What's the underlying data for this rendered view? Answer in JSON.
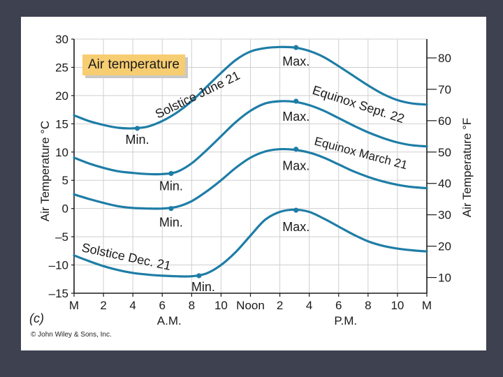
{
  "chart_data": {
    "type": "line",
    "title": "Air temperature",
    "ylabel_left": "Air Temperature °C",
    "ylabel_right": "Air Temperature °F",
    "ylim": [
      -15,
      30
    ],
    "yticks_left": [
      "30",
      "25",
      "20",
      "15",
      "10",
      "5",
      "0",
      "–5",
      "–10",
      "–15"
    ],
    "yticks_left_values": [
      30,
      25,
      20,
      15,
      10,
      5,
      0,
      -5,
      -10,
      -15
    ],
    "yticks_right": [
      "80",
      "70",
      "60",
      "50",
      "40",
      "30",
      "20",
      "10"
    ],
    "yticks_right_values_f": [
      80,
      70,
      60,
      50,
      40,
      30,
      20,
      10
    ],
    "xticks": [
      "M",
      "2",
      "4",
      "6",
      "8",
      "10",
      "Noon",
      "2",
      "4",
      "6",
      "8",
      "10",
      "M"
    ],
    "xticks_hours": [
      0,
      2,
      4,
      6,
      8,
      10,
      12,
      14,
      16,
      18,
      20,
      22,
      24
    ],
    "x_period_labels": [
      "A.M.",
      "P.M."
    ],
    "x_period_hours": [
      6,
      18
    ],
    "grid": true,
    "series": [
      {
        "name": "Solstice June 21",
        "x": [
          0,
          1,
          2,
          3,
          4,
          5,
          6,
          7,
          8,
          9,
          10,
          11,
          12,
          13,
          14,
          15,
          16,
          17,
          18,
          19,
          20,
          21,
          22,
          23,
          24
        ],
        "y": [
          16.5,
          15.5,
          14.8,
          14.3,
          14.2,
          14.5,
          15.5,
          17.0,
          19.0,
          21.5,
          24.0,
          26.3,
          27.8,
          28.4,
          28.6,
          28.5,
          27.9,
          26.8,
          25.2,
          23.5,
          21.8,
          20.3,
          19.2,
          18.6,
          18.4
        ],
        "min": {
          "x": 4.3,
          "y": 14.2,
          "label": "Min."
        },
        "max": {
          "x": 15.1,
          "y": 28.5,
          "label": "Max."
        }
      },
      {
        "name": "Equinox Sept. 22",
        "x": [
          0,
          1,
          2,
          3,
          4,
          5,
          6,
          7,
          8,
          9,
          10,
          11,
          12,
          13,
          14,
          15,
          16,
          17,
          18,
          19,
          20,
          21,
          22,
          23,
          24
        ],
        "y": [
          9.0,
          8.0,
          7.2,
          6.6,
          6.3,
          6.1,
          6.1,
          6.5,
          8.0,
          10.3,
          12.8,
          15.3,
          17.3,
          18.6,
          19.0,
          18.9,
          18.3,
          17.3,
          16.0,
          14.7,
          13.5,
          12.5,
          11.7,
          11.2,
          11.0
        ],
        "min": {
          "x": 6.6,
          "y": 6.2,
          "label": "Min."
        },
        "max": {
          "x": 15.1,
          "y": 19.0,
          "label": "Max."
        }
      },
      {
        "name": "Equinox March 21",
        "x": [
          0,
          1,
          2,
          3,
          4,
          5,
          6,
          7,
          8,
          9,
          10,
          11,
          12,
          13,
          14,
          15,
          16,
          17,
          18,
          19,
          20,
          21,
          22,
          23,
          24
        ],
        "y": [
          2.5,
          1.7,
          1.0,
          0.4,
          0.1,
          0.0,
          0.0,
          0.3,
          1.3,
          3.0,
          5.0,
          7.2,
          9.0,
          10.1,
          10.5,
          10.4,
          9.9,
          9.0,
          7.8,
          6.6,
          5.6,
          4.8,
          4.2,
          3.8,
          3.6
        ],
        "min": {
          "x": 6.6,
          "y": 0.0,
          "label": "Min."
        },
        "max": {
          "x": 15.1,
          "y": 10.5,
          "label": "Max."
        }
      },
      {
        "name": "Solstice Dec. 21",
        "x": [
          0,
          1,
          2,
          3,
          4,
          5,
          6,
          7,
          8,
          9,
          10,
          11,
          12,
          13,
          14,
          15,
          16,
          17,
          18,
          19,
          20,
          21,
          22,
          23,
          24
        ],
        "y": [
          -8.3,
          -9.3,
          -10.2,
          -10.9,
          -11.4,
          -11.7,
          -11.9,
          -12.0,
          -12.0,
          -11.5,
          -10.0,
          -7.7,
          -4.8,
          -2.0,
          -0.6,
          -0.2,
          -0.6,
          -1.8,
          -3.2,
          -4.6,
          -5.8,
          -6.6,
          -7.1,
          -7.4,
          -7.6
        ],
        "min": {
          "x": 8.5,
          "y": -11.9,
          "label": "Min."
        },
        "max": {
          "x": 15.1,
          "y": -0.3,
          "label": "Max."
        }
      }
    ]
  },
  "caption": {
    "panel_label": "(c)",
    "credit": "© John Wiley & Sons, Inc."
  },
  "colors": {
    "curve": "#1e7da6",
    "axis": "#1a1a1a",
    "badge": "#f7cd72",
    "background": "#3d4150"
  }
}
